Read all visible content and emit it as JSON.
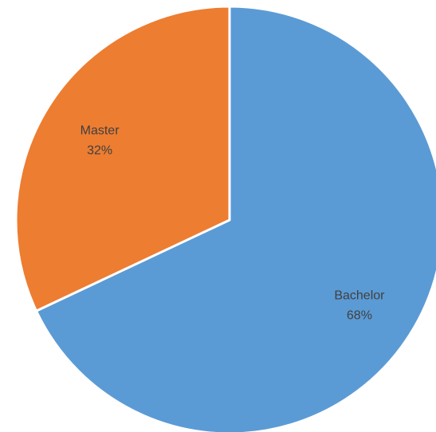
{
  "chart_data": {
    "type": "pie",
    "title": "",
    "legend": "none",
    "slices": [
      {
        "name": "Bachelor",
        "value": 68,
        "label_percent": "68%",
        "color": "#5B9BD5"
      },
      {
        "name": "Master",
        "value": 32,
        "label_percent": "32%",
        "color": "#ED7D31"
      }
    ]
  }
}
